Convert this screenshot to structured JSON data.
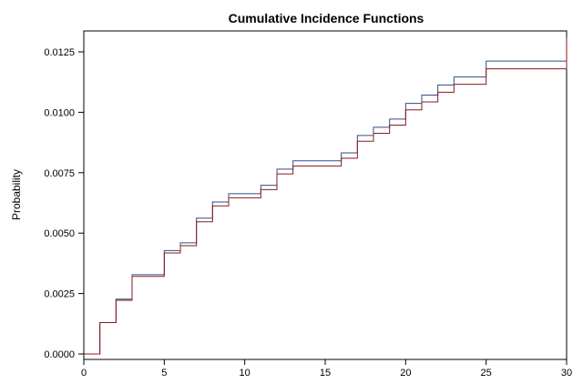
{
  "chart_data": {
    "type": "line",
    "step": true,
    "title": "Cumulative Incidence Functions",
    "xlabel": "",
    "ylabel": "Probability",
    "xlim": [
      0,
      30
    ],
    "ylim": [
      0,
      0.0135
    ],
    "xticks": [
      0,
      5,
      10,
      15,
      20,
      25,
      30
    ],
    "xtick_labels": [
      "0",
      "5",
      "10",
      "15",
      "20",
      "25",
      "30"
    ],
    "yticks": [
      0.0,
      0.0025,
      0.005,
      0.0075,
      0.01,
      0.0125
    ],
    "ytick_labels": [
      "0.0000",
      "0.0025",
      "0.0050",
      "0.0075",
      "0.0100",
      "0.0125"
    ],
    "grid": false,
    "legend": "none",
    "series": [
      {
        "color": "#2f4d8f",
        "x": [
          0,
          1,
          2,
          3,
          5,
          6,
          7,
          8,
          9,
          11,
          12,
          13,
          16,
          17,
          18,
          19,
          20,
          21,
          22,
          23,
          25,
          30
        ],
        "y": [
          0.0,
          0.0013,
          0.00227,
          0.00328,
          0.00428,
          0.0046,
          0.00562,
          0.00629,
          0.00663,
          0.00698,
          0.00765,
          0.00799,
          0.00832,
          0.00904,
          0.00938,
          0.00972,
          0.01037,
          0.01071,
          0.01113,
          0.01146,
          0.01212,
          0.0131
        ]
      },
      {
        "color": "#8b1a1a",
        "x": [
          0,
          1,
          2,
          3,
          5,
          6,
          7,
          8,
          9,
          11,
          12,
          13,
          16,
          17,
          18,
          19,
          20,
          21,
          22,
          23,
          25,
          30
        ],
        "y": [
          0.0,
          0.0013,
          0.00222,
          0.00321,
          0.00418,
          0.00448,
          0.00547,
          0.00613,
          0.00646,
          0.0068,
          0.00745,
          0.00778,
          0.0081,
          0.0088,
          0.00913,
          0.00947,
          0.0101,
          0.01043,
          0.01083,
          0.01116,
          0.0118,
          0.0131
        ]
      }
    ]
  }
}
